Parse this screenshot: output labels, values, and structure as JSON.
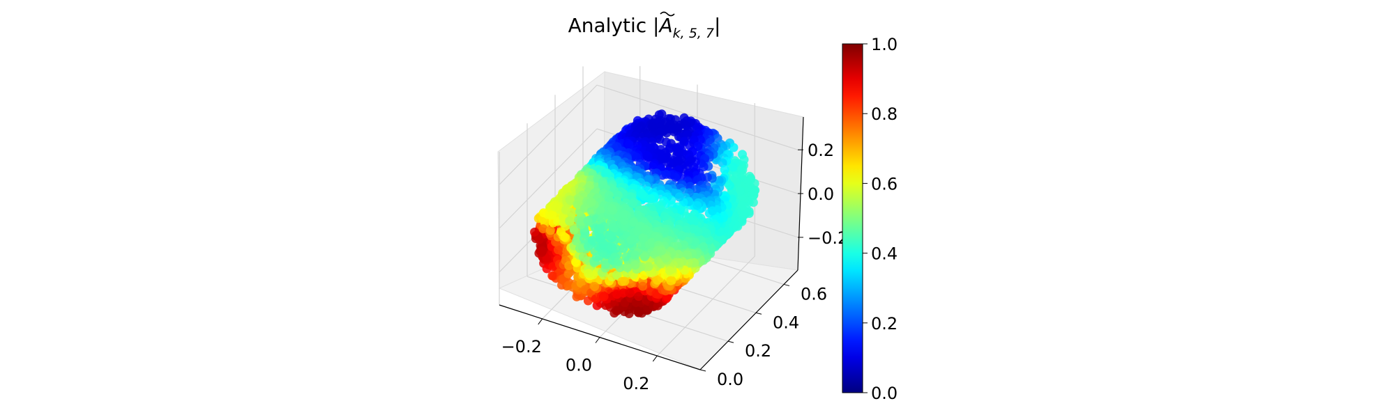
{
  "chart_data": {
    "type": "scatter",
    "projection": "3d",
    "title": {
      "prefix": "Analytic |",
      "symbol": "A",
      "subscript": "k, 5, 7",
      "suffix": "|"
    },
    "xlabel": "",
    "ylabel": "",
    "zlabel": "",
    "x_ticks": [
      "−0.2",
      "0.0",
      "0.2"
    ],
    "x_tick_values": [
      -0.2,
      0.0,
      0.2
    ],
    "y_ticks": [
      "0.0",
      "0.2",
      "0.4",
      "0.6"
    ],
    "y_tick_values": [
      0.0,
      0.2,
      0.4,
      0.6
    ],
    "z_ticks": [
      "−0.2",
      "0.0",
      "0.2"
    ],
    "z_tick_values": [
      -0.2,
      0.0,
      0.2
    ],
    "xlim": [
      -0.35,
      0.35
    ],
    "ylim": [
      0.0,
      0.7
    ],
    "zlim": [
      -0.35,
      0.35
    ],
    "colormap": "jet",
    "color_range": [
      0.0,
      1.0
    ],
    "colorbar_ticks": [
      "0.0",
      "0.2",
      "0.4",
      "0.6",
      "0.8",
      "1.0"
    ],
    "colorbar_tick_values": [
      0.0,
      0.2,
      0.4,
      0.6,
      0.8,
      1.0
    ],
    "grid": true,
    "shape": "cylindrical point cloud lying along y, magnitude peaks near the front ends",
    "regions": [
      {
        "x": -0.26,
        "y": 0.05,
        "z": -0.02,
        "value": 0.96
      },
      {
        "x": 0.14,
        "y": 0.03,
        "z": -0.24,
        "value": 0.97
      },
      {
        "x": -0.22,
        "y": 0.1,
        "z": 0.08,
        "value": 0.58
      },
      {
        "x": -0.02,
        "y": 0.08,
        "z": 0.05,
        "value": 0.44
      },
      {
        "x": 0.06,
        "y": 0.28,
        "z": 0.06,
        "value": 0.46
      },
      {
        "x": 0.2,
        "y": 0.58,
        "z": 0.05,
        "value": 0.42
      },
      {
        "x": 0.05,
        "y": 0.4,
        "z": 0.2,
        "value": 0.1
      },
      {
        "x": -0.05,
        "y": 0.55,
        "z": 0.25,
        "value": 0.08
      }
    ]
  }
}
